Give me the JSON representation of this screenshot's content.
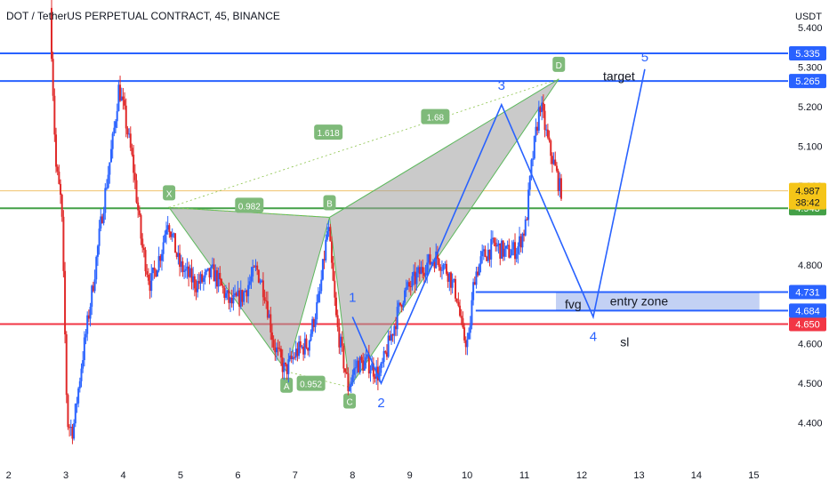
{
  "chart_data": {
    "type": "candlestick",
    "title": "DOT / TetherUS PERPETUAL CONTRACT, 45, BINANCE",
    "price_axis_label": "USDT",
    "y_range": [
      4.3,
      5.47
    ],
    "x_range": [
      1.85,
      15.6
    ],
    "y_ticks": [
      4.4,
      4.5,
      4.6,
      4.8,
      5.0,
      5.1,
      5.2,
      5.3,
      5.4
    ],
    "y_tick_labels": [
      "4.400",
      "4.500",
      "4.600",
      "4.800",
      "5.000",
      "5.100",
      "5.200",
      "5.300",
      "5.400"
    ],
    "x_ticks": [
      2,
      3,
      4,
      5,
      6,
      7,
      8,
      9,
      10,
      11,
      12,
      13,
      14,
      15
    ],
    "x_tick_labels": [
      "2",
      "3",
      "4",
      "5",
      "6",
      "7",
      "8",
      "9",
      "10",
      "11",
      "12",
      "13",
      "14",
      "15"
    ],
    "grid": false,
    "colors": {
      "up": "#2962ff",
      "down": "#e02a2a",
      "blue_line": "#2962ff",
      "green_line": "#43a047",
      "red_line": "#f23645",
      "last_price": "#f5c518",
      "pattern_fill": "#9e9e9e",
      "pattern_stroke": "#5cb85c",
      "point_label_bg": "#7fba7a",
      "wave": "#2962ff",
      "zone": "#b9c9f2"
    },
    "horizontal_lines": [
      {
        "price": 5.335,
        "label": "5.335",
        "color": "#2962ff"
      },
      {
        "price": 5.265,
        "label": "5.265",
        "color": "#2962ff"
      },
      {
        "price": 4.943,
        "label": "4.943",
        "color": "#43a047"
      },
      {
        "price": 4.65,
        "label": "4.650",
        "color": "#f23645"
      }
    ],
    "last_price": {
      "price": 4.987,
      "label": "4.987",
      "countdown": "38:42"
    },
    "fvg_zone": {
      "top": 4.731,
      "bottom": 4.684,
      "top_label": "4.731",
      "bottom_label": "4.684",
      "x_start": 11.55,
      "x_end": 15.1
    },
    "harmonic_pattern": {
      "points": [
        {
          "name": "X",
          "x": 4.8,
          "price": 4.945
        },
        {
          "name": "A",
          "x": 6.85,
          "price": 4.53
        },
        {
          "name": "B",
          "x": 7.6,
          "price": 4.92
        },
        {
          "name": "C",
          "x": 7.95,
          "price": 4.49
        },
        {
          "name": "D",
          "x": 11.6,
          "price": 5.27
        }
      ],
      "ratios": [
        {
          "label": "0.982"
        },
        {
          "label": "1.618"
        },
        {
          "label": "1.68"
        },
        {
          "label": "0.952"
        }
      ]
    },
    "elliott_waves": [
      {
        "label": "1",
        "x": 8.0,
        "price": 4.668
      },
      {
        "label": "2",
        "x": 8.5,
        "price": 4.5
      },
      {
        "label": "3",
        "x": 10.6,
        "price": 5.205
      },
      {
        "label": "4",
        "x": 12.2,
        "price": 4.668
      },
      {
        "label": "5",
        "x": 13.1,
        "price": 5.295
      }
    ],
    "annotations": {
      "target": "target",
      "fvg": "fvg",
      "entry_zone": "entry zone",
      "sl": "sl"
    },
    "price_path": [
      [
        2.75,
        5.45
      ],
      [
        2.85,
        5.05
      ],
      [
        2.95,
        4.95
      ],
      [
        3.05,
        4.4
      ],
      [
        3.15,
        4.38
      ],
      [
        3.3,
        4.55
      ],
      [
        3.5,
        4.75
      ],
      [
        3.65,
        4.92
      ],
      [
        3.85,
        5.12
      ],
      [
        3.95,
        5.25
      ],
      [
        4.05,
        5.18
      ],
      [
        4.2,
        5.05
      ],
      [
        4.35,
        4.85
      ],
      [
        4.5,
        4.75
      ],
      [
        4.7,
        4.84
      ],
      [
        4.8,
        4.92
      ],
      [
        5.0,
        4.8
      ],
      [
        5.3,
        4.75
      ],
      [
        5.6,
        4.78
      ],
      [
        5.9,
        4.7
      ],
      [
        6.1,
        4.72
      ],
      [
        6.35,
        4.79
      ],
      [
        6.5,
        4.73
      ],
      [
        6.65,
        4.6
      ],
      [
        6.85,
        4.53
      ],
      [
        7.05,
        4.58
      ],
      [
        7.25,
        4.6
      ],
      [
        7.45,
        4.72
      ],
      [
        7.6,
        4.9
      ],
      [
        7.75,
        4.65
      ],
      [
        7.95,
        4.49
      ],
      [
        8.1,
        4.55
      ],
      [
        8.3,
        4.55
      ],
      [
        8.5,
        4.52
      ],
      [
        8.7,
        4.62
      ],
      [
        8.9,
        4.72
      ],
      [
        9.1,
        4.76
      ],
      [
        9.3,
        4.8
      ],
      [
        9.5,
        4.82
      ],
      [
        9.7,
        4.78
      ],
      [
        9.85,
        4.72
      ],
      [
        9.95,
        4.62
      ],
      [
        10.05,
        4.6
      ],
      [
        10.15,
        4.77
      ],
      [
        10.3,
        4.82
      ],
      [
        10.5,
        4.85
      ],
      [
        10.7,
        4.83
      ],
      [
        10.9,
        4.84
      ],
      [
        11.05,
        4.9
      ],
      [
        11.15,
        5.05
      ],
      [
        11.3,
        5.21
      ],
      [
        11.45,
        5.1
      ],
      [
        11.55,
        5.05
      ],
      [
        11.65,
        4.99
      ]
    ]
  }
}
